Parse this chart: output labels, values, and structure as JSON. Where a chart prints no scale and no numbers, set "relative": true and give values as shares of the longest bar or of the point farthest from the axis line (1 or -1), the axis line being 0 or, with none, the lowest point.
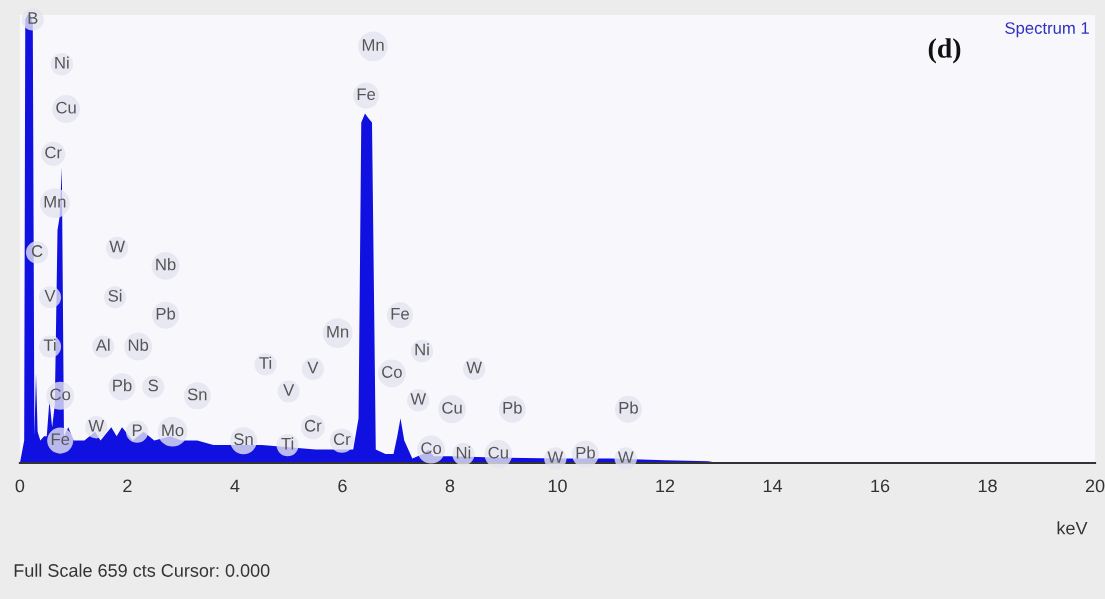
{
  "chart_data": {
    "type": "area",
    "relative": true,
    "xlabel": "keV",
    "xlim": [
      0,
      20
    ],
    "xticks": [
      0,
      2,
      4,
      6,
      8,
      10,
      12,
      14,
      16,
      18,
      20
    ],
    "series": [
      {
        "color": "#1010e0",
        "x": [
          0,
          0.08,
          0.1,
          0.14,
          0.2,
          0.24,
          0.27,
          0.3,
          0.33,
          0.38,
          0.45,
          0.5,
          0.55,
          0.6,
          0.65,
          0.7,
          0.74,
          0.78,
          0.82,
          0.9,
          1.0,
          1.2,
          1.4,
          1.5,
          1.7,
          1.8,
          1.9,
          2.1,
          2.3,
          2.5,
          2.8,
          3.0,
          3.3,
          3.6,
          4.0,
          4.5,
          5.0,
          5.5,
          6.0,
          6.2,
          6.3,
          6.35,
          6.42,
          6.48,
          6.55,
          6.62,
          6.8,
          6.95,
          7.02,
          7.08,
          7.15,
          7.3,
          7.5,
          7.6,
          7.7,
          8.0,
          9.0,
          10.0,
          11.0,
          12.0,
          12.8,
          13.0,
          20
        ],
        "values": [
          0,
          0.05,
          0.99,
          1.0,
          1.0,
          0.98,
          0.06,
          0.2,
          0.07,
          0.05,
          0.06,
          0.06,
          0.14,
          0.08,
          0.13,
          0.52,
          0.55,
          0.66,
          0.06,
          0.08,
          0.05,
          0.05,
          0.07,
          0.05,
          0.08,
          0.06,
          0.08,
          0.05,
          0.07,
          0.05,
          0.06,
          0.05,
          0.05,
          0.04,
          0.04,
          0.04,
          0.035,
          0.03,
          0.03,
          0.03,
          0.1,
          0.76,
          0.78,
          0.77,
          0.76,
          0.03,
          0.02,
          0.02,
          0.06,
          0.1,
          0.05,
          0.01,
          0.02,
          0.03,
          0.015,
          0.015,
          0.012,
          0.01,
          0.01,
          0.006,
          0.004,
          0,
          0
        ]
      }
    ],
    "annotations": [
      "Spectrum 1",
      "(d)",
      "Full Scale 659 cts Cursor: 0.000",
      {
        "text": "B",
        "x": 0.24,
        "y": 0.99
      },
      {
        "text": "Ni",
        "x": 0.78,
        "y": 0.89
      },
      {
        "text": "Cu",
        "x": 0.86,
        "y": 0.79
      },
      {
        "text": "Cr",
        "x": 0.62,
        "y": 0.69
      },
      {
        "text": "Mn",
        "x": 0.65,
        "y": 0.58
      },
      {
        "text": "C",
        "x": 0.32,
        "y": 0.47
      },
      {
        "text": "V",
        "x": 0.56,
        "y": 0.37
      },
      {
        "text": "Ti",
        "x": 0.56,
        "y": 0.26
      },
      {
        "text": "Co",
        "x": 0.75,
        "y": 0.15
      },
      {
        "text": "Fe",
        "x": 0.75,
        "y": 0.05
      },
      {
        "text": "W",
        "x": 1.81,
        "y": 0.48
      },
      {
        "text": "Si",
        "x": 1.77,
        "y": 0.37
      },
      {
        "text": "Al",
        "x": 1.55,
        "y": 0.26
      },
      {
        "text": "Nb",
        "x": 2.2,
        "y": 0.26
      },
      {
        "text": "Pb",
        "x": 1.9,
        "y": 0.17
      },
      {
        "text": "S",
        "x": 2.48,
        "y": 0.17
      },
      {
        "text": "P",
        "x": 2.18,
        "y": 0.07
      },
      {
        "text": "W",
        "x": 1.42,
        "y": 0.08
      },
      {
        "text": "Mo",
        "x": 2.84,
        "y": 0.07
      },
      {
        "text": "Nb",
        "x": 2.71,
        "y": 0.44
      },
      {
        "text": "Pb",
        "x": 2.71,
        "y": 0.33
      },
      {
        "text": "Sn",
        "x": 3.3,
        "y": 0.15
      },
      {
        "text": "Sn",
        "x": 4.16,
        "y": 0.05
      },
      {
        "text": "Ti",
        "x": 4.57,
        "y": 0.22
      },
      {
        "text": "V",
        "x": 5.0,
        "y": 0.16
      },
      {
        "text": "Ti",
        "x": 4.98,
        "y": 0.04
      },
      {
        "text": "Cr",
        "x": 5.45,
        "y": 0.08
      },
      {
        "text": "V",
        "x": 5.45,
        "y": 0.21
      },
      {
        "text": "Cr",
        "x": 5.99,
        "y": 0.05
      },
      {
        "text": "Mn",
        "x": 5.91,
        "y": 0.29
      },
      {
        "text": "Mn",
        "x": 6.57,
        "y": 0.93
      },
      {
        "text": "Fe",
        "x": 6.44,
        "y": 0.82
      },
      {
        "text": "Fe",
        "x": 7.07,
        "y": 0.33
      },
      {
        "text": "Co",
        "x": 6.92,
        "y": 0.2
      },
      {
        "text": "Ni",
        "x": 7.48,
        "y": 0.25
      },
      {
        "text": "W",
        "x": 7.41,
        "y": 0.14
      },
      {
        "text": "Cu",
        "x": 8.04,
        "y": 0.12
      },
      {
        "text": "W",
        "x": 8.45,
        "y": 0.21
      },
      {
        "text": "Co",
        "x": 7.65,
        "y": 0.03
      },
      {
        "text": "Ni",
        "x": 8.25,
        "y": 0.02
      },
      {
        "text": "Pb",
        "x": 9.16,
        "y": 0.12
      },
      {
        "text": "Cu",
        "x": 8.9,
        "y": 0.02
      },
      {
        "text": "W",
        "x": 9.96,
        "y": 0.01
      },
      {
        "text": "Pb",
        "x": 10.52,
        "y": 0.02
      },
      {
        "text": "Pb",
        "x": 11.32,
        "y": 0.12
      },
      {
        "text": "W",
        "x": 11.27,
        "y": 0.01
      }
    ]
  }
}
